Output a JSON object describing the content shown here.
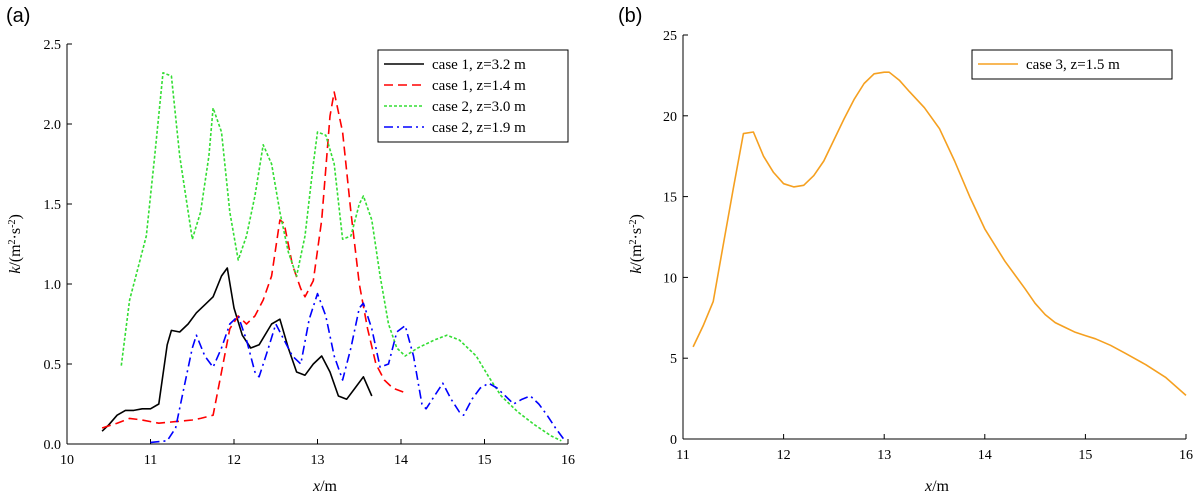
{
  "chart_data": [
    {
      "type": "line",
      "panel_label": "(a)",
      "xlabel": "x/m",
      "ylabel": "k/(m²·s⁻²)",
      "xlim": [
        10,
        16
      ],
      "ylim": [
        0,
        2.5
      ],
      "xticks": [
        10,
        11,
        12,
        13,
        14,
        15,
        16
      ],
      "yticks": [
        0.0,
        0.5,
        1.0,
        1.5,
        2.0,
        2.5
      ],
      "ytick_labels": [
        "0.0",
        "0.5",
        "1.0",
        "1.5",
        "2.0",
        "2.5"
      ],
      "legend": "top-right",
      "grid": false,
      "series": [
        {
          "name": "case 1, z=3.2 m",
          "color": "#000000",
          "style": "solid",
          "points": [
            [
              10.42,
              0.08
            ],
            [
              10.5,
              0.12
            ],
            [
              10.6,
              0.18
            ],
            [
              10.7,
              0.21
            ],
            [
              10.8,
              0.21
            ],
            [
              10.9,
              0.22
            ],
            [
              11.0,
              0.22
            ],
            [
              11.1,
              0.25
            ],
            [
              11.2,
              0.62
            ],
            [
              11.25,
              0.71
            ],
            [
              11.35,
              0.7
            ],
            [
              11.45,
              0.75
            ],
            [
              11.55,
              0.82
            ],
            [
              11.65,
              0.87
            ],
            [
              11.75,
              0.92
            ],
            [
              11.85,
              1.05
            ],
            [
              11.92,
              1.1
            ],
            [
              12.0,
              0.85
            ],
            [
              12.1,
              0.68
            ],
            [
              12.2,
              0.6
            ],
            [
              12.3,
              0.62
            ],
            [
              12.45,
              0.75
            ],
            [
              12.55,
              0.78
            ],
            [
              12.65,
              0.6
            ],
            [
              12.75,
              0.45
            ],
            [
              12.85,
              0.43
            ],
            [
              12.95,
              0.5
            ],
            [
              13.05,
              0.55
            ],
            [
              13.15,
              0.45
            ],
            [
              13.25,
              0.3
            ],
            [
              13.35,
              0.28
            ],
            [
              13.45,
              0.35
            ],
            [
              13.55,
              0.42
            ],
            [
              13.65,
              0.3
            ]
          ]
        },
        {
          "name": "case 1, z=1.4 m",
          "color": "#ff0000",
          "style": "dashed",
          "points": [
            [
              10.42,
              0.1
            ],
            [
              10.6,
              0.13
            ],
            [
              10.75,
              0.16
            ],
            [
              10.9,
              0.15
            ],
            [
              11.1,
              0.13
            ],
            [
              11.3,
              0.14
            ],
            [
              11.5,
              0.15
            ],
            [
              11.6,
              0.16
            ],
            [
              11.75,
              0.18
            ],
            [
              11.85,
              0.45
            ],
            [
              11.95,
              0.72
            ],
            [
              12.05,
              0.8
            ],
            [
              12.15,
              0.75
            ],
            [
              12.25,
              0.8
            ],
            [
              12.35,
              0.9
            ],
            [
              12.45,
              1.05
            ],
            [
              12.55,
              1.4
            ],
            [
              12.6,
              1.38
            ],
            [
              12.7,
              1.12
            ],
            [
              12.8,
              0.97
            ],
            [
              12.85,
              0.92
            ],
            [
              12.95,
              1.02
            ],
            [
              13.05,
              1.4
            ],
            [
              13.15,
              2.05
            ],
            [
              13.2,
              2.2
            ],
            [
              13.3,
              1.95
            ],
            [
              13.4,
              1.45
            ],
            [
              13.5,
              1.0
            ],
            [
              13.6,
              0.72
            ],
            [
              13.7,
              0.5
            ],
            [
              13.8,
              0.4
            ],
            [
              13.9,
              0.35
            ],
            [
              14.05,
              0.32
            ]
          ]
        },
        {
          "name": "case 2, z=3.0 m",
          "color": "#33dd33",
          "style": "dotted",
          "points": [
            [
              10.65,
              0.49
            ],
            [
              10.75,
              0.9
            ],
            [
              10.85,
              1.1
            ],
            [
              10.95,
              1.3
            ],
            [
              11.05,
              1.8
            ],
            [
              11.15,
              2.32
            ],
            [
              11.25,
              2.3
            ],
            [
              11.35,
              1.8
            ],
            [
              11.5,
              1.28
            ],
            [
              11.6,
              1.45
            ],
            [
              11.7,
              1.8
            ],
            [
              11.75,
              2.1
            ],
            [
              11.85,
              1.95
            ],
            [
              11.95,
              1.45
            ],
            [
              12.05,
              1.15
            ],
            [
              12.15,
              1.3
            ],
            [
              12.25,
              1.55
            ],
            [
              12.35,
              1.87
            ],
            [
              12.45,
              1.75
            ],
            [
              12.55,
              1.45
            ],
            [
              12.65,
              1.2
            ],
            [
              12.75,
              1.05
            ],
            [
              12.85,
              1.3
            ],
            [
              12.95,
              1.75
            ],
            [
              13.0,
              1.95
            ],
            [
              13.1,
              1.93
            ],
            [
              13.2,
              1.75
            ],
            [
              13.3,
              1.28
            ],
            [
              13.4,
              1.3
            ],
            [
              13.5,
              1.5
            ],
            [
              13.55,
              1.55
            ],
            [
              13.65,
              1.4
            ],
            [
              13.75,
              1.05
            ],
            [
              13.85,
              0.75
            ],
            [
              13.95,
              0.6
            ],
            [
              14.05,
              0.55
            ],
            [
              14.2,
              0.6
            ],
            [
              14.4,
              0.65
            ],
            [
              14.55,
              0.68
            ],
            [
              14.7,
              0.65
            ],
            [
              14.9,
              0.55
            ],
            [
              15.05,
              0.42
            ],
            [
              15.2,
              0.3
            ],
            [
              15.4,
              0.2
            ],
            [
              15.6,
              0.12
            ],
            [
              15.8,
              0.05
            ],
            [
              15.92,
              0.02
            ]
          ]
        },
        {
          "name": "case 2, z=1.9 m",
          "color": "#0000ff",
          "style": "dashdot",
          "points": [
            [
              11.0,
              0.01
            ],
            [
              11.2,
              0.02
            ],
            [
              11.3,
              0.1
            ],
            [
              11.4,
              0.35
            ],
            [
              11.5,
              0.6
            ],
            [
              11.55,
              0.68
            ],
            [
              11.65,
              0.55
            ],
            [
              11.75,
              0.48
            ],
            [
              11.85,
              0.6
            ],
            [
              11.95,
              0.75
            ],
            [
              12.05,
              0.8
            ],
            [
              12.15,
              0.65
            ],
            [
              12.25,
              0.45
            ],
            [
              12.3,
              0.42
            ],
            [
              12.4,
              0.58
            ],
            [
              12.5,
              0.75
            ],
            [
              12.6,
              0.65
            ],
            [
              12.7,
              0.55
            ],
            [
              12.8,
              0.5
            ],
            [
              12.9,
              0.78
            ],
            [
              13.0,
              0.94
            ],
            [
              13.1,
              0.8
            ],
            [
              13.2,
              0.55
            ],
            [
              13.3,
              0.4
            ],
            [
              13.4,
              0.6
            ],
            [
              13.5,
              0.85
            ],
            [
              13.55,
              0.88
            ],
            [
              13.65,
              0.72
            ],
            [
              13.75,
              0.48
            ],
            [
              13.85,
              0.5
            ],
            [
              13.95,
              0.7
            ],
            [
              14.05,
              0.74
            ],
            [
              14.15,
              0.55
            ],
            [
              14.25,
              0.25
            ],
            [
              14.3,
              0.22
            ],
            [
              14.4,
              0.3
            ],
            [
              14.5,
              0.38
            ],
            [
              14.6,
              0.28
            ],
            [
              14.7,
              0.2
            ],
            [
              14.75,
              0.18
            ],
            [
              14.85,
              0.28
            ],
            [
              14.95,
              0.35
            ],
            [
              15.05,
              0.38
            ],
            [
              15.15,
              0.35
            ],
            [
              15.25,
              0.3
            ],
            [
              15.35,
              0.25
            ],
            [
              15.45,
              0.28
            ],
            [
              15.55,
              0.3
            ],
            [
              15.65,
              0.25
            ],
            [
              15.75,
              0.18
            ],
            [
              15.85,
              0.1
            ],
            [
              15.95,
              0.03
            ]
          ]
        }
      ]
    },
    {
      "type": "line",
      "panel_label": "(b)",
      "xlabel": "x/m",
      "ylabel": "k/(m²·s⁻²)",
      "xlim": [
        11,
        16
      ],
      "ylim": [
        0,
        25
      ],
      "xticks": [
        11,
        12,
        13,
        14,
        15,
        16
      ],
      "yticks": [
        0,
        5,
        10,
        15,
        20,
        25
      ],
      "ytick_labels": [
        "0",
        "5",
        "10",
        "15",
        "20",
        "25"
      ],
      "legend": "top-right",
      "grid": false,
      "series": [
        {
          "name": "case 3, z=1.5 m",
          "color": "#f5a020",
          "style": "solid",
          "points": [
            [
              11.1,
              5.7
            ],
            [
              11.2,
              7.0
            ],
            [
              11.3,
              8.5
            ],
            [
              11.4,
              12.0
            ],
            [
              11.5,
              15.5
            ],
            [
              11.6,
              18.9
            ],
            [
              11.7,
              19.0
            ],
            [
              11.8,
              17.5
            ],
            [
              11.9,
              16.5
            ],
            [
              12.0,
              15.8
            ],
            [
              12.1,
              15.6
            ],
            [
              12.2,
              15.7
            ],
            [
              12.3,
              16.3
            ],
            [
              12.4,
              17.2
            ],
            [
              12.5,
              18.5
            ],
            [
              12.6,
              19.8
            ],
            [
              12.7,
              21.0
            ],
            [
              12.8,
              22.0
            ],
            [
              12.9,
              22.6
            ],
            [
              13.0,
              22.7
            ],
            [
              13.05,
              22.7
            ],
            [
              13.15,
              22.2
            ],
            [
              13.25,
              21.5
            ],
            [
              13.4,
              20.5
            ],
            [
              13.55,
              19.2
            ],
            [
              13.7,
              17.2
            ],
            [
              13.85,
              15.0
            ],
            [
              14.0,
              13.0
            ],
            [
              14.2,
              11.0
            ],
            [
              14.4,
              9.3
            ],
            [
              14.5,
              8.4
            ],
            [
              14.6,
              7.7
            ],
            [
              14.7,
              7.2
            ],
            [
              14.8,
              6.9
            ],
            [
              14.9,
              6.6
            ],
            [
              15.0,
              6.4
            ],
            [
              15.1,
              6.2
            ],
            [
              15.25,
              5.8
            ],
            [
              15.4,
              5.3
            ],
            [
              15.6,
              4.6
            ],
            [
              15.8,
              3.8
            ],
            [
              16.0,
              2.7
            ]
          ]
        }
      ]
    }
  ]
}
